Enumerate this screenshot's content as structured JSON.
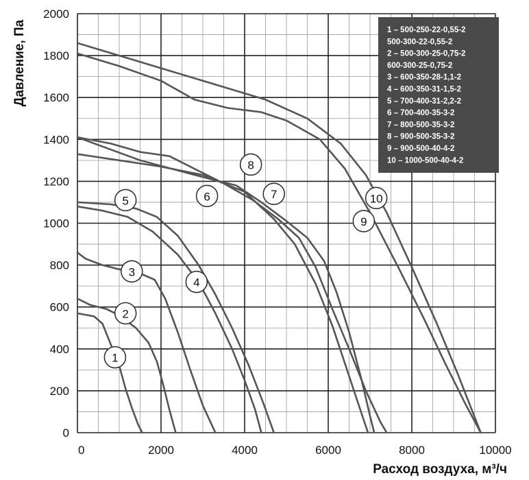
{
  "chart_data": {
    "type": "line",
    "xlabel": "Расход воздуха, м³/ч",
    "ylabel": "Давление, Па",
    "xlim": [
      0,
      10000
    ],
    "ylim": [
      0,
      2000
    ],
    "x_ticks": [
      "0",
      "2000",
      "4000",
      "6000",
      "8000",
      "10000"
    ],
    "y_ticks": [
      "0",
      "200",
      "400",
      "600",
      "800",
      "1000",
      "1200",
      "1400",
      "1600",
      "1800",
      "2000"
    ],
    "grid": true,
    "legend_position": "top-right",
    "legend": [
      "1 – 500-250-22-0,55-2",
      "500-300-22-0,55-2",
      "2 – 500-300-25-0,75-2",
      "600-300-25-0,75-2",
      "3 – 600-350-28-1,1-2",
      "4 – 600-350-31-1,5-2",
      "5 – 700-400-31-2,2-2",
      "6 – 700-400-35-3-2",
      "7 – 800-500-35-3-2",
      "8 – 900-500-35-3-2",
      "9 – 900-500-40-4-2",
      "10 – 1000-500-40-4-2"
    ],
    "series": [
      {
        "label": "1",
        "label_x": 900,
        "label_y": 360,
        "points": [
          [
            0,
            570
          ],
          [
            400,
            555
          ],
          [
            600,
            520
          ],
          [
            800,
            420
          ],
          [
            1000,
            320
          ],
          [
            1150,
            210
          ],
          [
            1300,
            120
          ],
          [
            1450,
            40
          ],
          [
            1550,
            0
          ]
        ]
      },
      {
        "label": "2",
        "label_x": 1150,
        "label_y": 570,
        "points": [
          [
            0,
            640
          ],
          [
            300,
            610
          ],
          [
            700,
            590
          ],
          [
            1000,
            560
          ],
          [
            1400,
            500
          ],
          [
            1700,
            430
          ],
          [
            1900,
            340
          ],
          [
            2050,
            230
          ],
          [
            2200,
            110
          ],
          [
            2350,
            0
          ]
        ]
      },
      {
        "label": "3",
        "label_x": 1300,
        "label_y": 770,
        "points": [
          [
            0,
            860
          ],
          [
            200,
            830
          ],
          [
            600,
            800
          ],
          [
            1000,
            780
          ],
          [
            1500,
            760
          ],
          [
            1850,
            730
          ],
          [
            2100,
            640
          ],
          [
            2400,
            480
          ],
          [
            2700,
            300
          ],
          [
            3000,
            130
          ],
          [
            3300,
            0
          ]
        ]
      },
      {
        "label": "4",
        "label_x": 2850,
        "label_y": 720,
        "points": [
          [
            0,
            1080
          ],
          [
            600,
            1060
          ],
          [
            1200,
            1030
          ],
          [
            1800,
            960
          ],
          [
            2400,
            850
          ],
          [
            2900,
            720
          ],
          [
            3300,
            570
          ],
          [
            3700,
            400
          ],
          [
            4000,
            250
          ],
          [
            4250,
            110
          ],
          [
            4400,
            0
          ]
        ]
      },
      {
        "label": "5",
        "label_x": 1150,
        "label_y": 1110,
        "points": [
          [
            0,
            1100
          ],
          [
            800,
            1090
          ],
          [
            1400,
            1070
          ],
          [
            1900,
            1030
          ],
          [
            2400,
            940
          ],
          [
            2900,
            800
          ],
          [
            3300,
            660
          ],
          [
            3700,
            500
          ],
          [
            4100,
            320
          ],
          [
            4450,
            140
          ],
          [
            4700,
            0
          ]
        ]
      },
      {
        "label": "6",
        "label_x": 3100,
        "label_y": 1130,
        "points": [
          [
            0,
            1330
          ],
          [
            1000,
            1300
          ],
          [
            2000,
            1270
          ],
          [
            3000,
            1230
          ],
          [
            4000,
            1150
          ],
          [
            4700,
            1020
          ],
          [
            5200,
            900
          ],
          [
            5700,
            710
          ],
          [
            6100,
            510
          ],
          [
            6500,
            270
          ],
          [
            6800,
            90
          ],
          [
            6950,
            0
          ]
        ]
      },
      {
        "label": "7",
        "label_x": 4700,
        "label_y": 1140,
        "points": [
          [
            0,
            1410
          ],
          [
            800,
            1380
          ],
          [
            1500,
            1340
          ],
          [
            2200,
            1320
          ],
          [
            2800,
            1260
          ],
          [
            3500,
            1190
          ],
          [
            4200,
            1110
          ],
          [
            4800,
            1020
          ],
          [
            5300,
            930
          ],
          [
            5700,
            790
          ],
          [
            6100,
            590
          ],
          [
            6500,
            400
          ],
          [
            6900,
            200
          ],
          [
            7250,
            50
          ],
          [
            7400,
            0
          ]
        ]
      },
      {
        "label": "8",
        "label_x": 4150,
        "label_y": 1280,
        "points": [
          [
            0,
            1410
          ],
          [
            1500,
            1300
          ],
          [
            3000,
            1220
          ],
          [
            3800,
            1180
          ],
          [
            4400,
            1100
          ],
          [
            5000,
            1010
          ],
          [
            5500,
            930
          ],
          [
            5900,
            820
          ],
          [
            6200,
            670
          ],
          [
            6500,
            480
          ],
          [
            6800,
            250
          ],
          [
            7000,
            80
          ],
          [
            7100,
            0
          ]
        ]
      },
      {
        "label": "9",
        "label_x": 6850,
        "label_y": 1010,
        "points": [
          [
            0,
            1810
          ],
          [
            1000,
            1750
          ],
          [
            2000,
            1680
          ],
          [
            2800,
            1590
          ],
          [
            3600,
            1550
          ],
          [
            4400,
            1530
          ],
          [
            5000,
            1490
          ],
          [
            5800,
            1400
          ],
          [
            6400,
            1260
          ],
          [
            7000,
            1050
          ],
          [
            7700,
            780
          ],
          [
            8300,
            540
          ],
          [
            8800,
            330
          ],
          [
            9300,
            130
          ],
          [
            9650,
            0
          ]
        ]
      },
      {
        "label": "10",
        "label_x": 7150,
        "label_y": 1120,
        "points": [
          [
            0,
            1860
          ],
          [
            1500,
            1770
          ],
          [
            3000,
            1680
          ],
          [
            4500,
            1590
          ],
          [
            5500,
            1500
          ],
          [
            6300,
            1380
          ],
          [
            6900,
            1230
          ],
          [
            7400,
            1050
          ],
          [
            8000,
            790
          ],
          [
            8600,
            520
          ],
          [
            9100,
            280
          ],
          [
            9650,
            0
          ]
        ]
      }
    ]
  }
}
